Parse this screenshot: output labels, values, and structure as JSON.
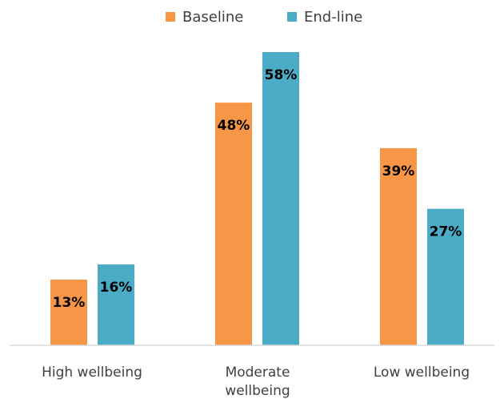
{
  "chart_data": {
    "type": "bar",
    "categories": [
      "High wellbeing",
      "Moderate wellbeing",
      "Low wellbeing"
    ],
    "category_lines": [
      [
        "High wellbeing"
      ],
      [
        "Moderate",
        "wellbeing"
      ],
      [
        "Low wellbeing"
      ]
    ],
    "series": [
      {
        "name": "Baseline",
        "values": [
          13,
          48,
          39
        ],
        "labels": [
          "13%",
          "48%",
          "39%"
        ],
        "color": "#F79646"
      },
      {
        "name": "End-line",
        "values": [
          16,
          58,
          27
        ],
        "labels": [
          "16%",
          "58%",
          "27%"
        ],
        "color": "#4BACC6"
      }
    ],
    "ylim": [
      0,
      60
    ],
    "grid": false,
    "legend": "top-center",
    "axis_color": "#D9D9D9"
  }
}
